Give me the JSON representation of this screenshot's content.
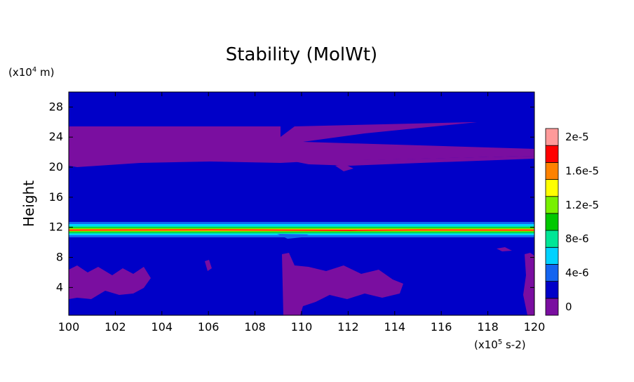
{
  "chart_data": {
    "type": "heatmap",
    "title": "Stability (MolWt)",
    "ylabel": "Height",
    "y_unit": "(x10",
    "y_unit_exp": "4",
    "y_unit_tail": " m)",
    "x_unit": "(x10",
    "x_unit_exp": "5",
    "x_unit_tail": " s-2)",
    "xlim": [
      100,
      120
    ],
    "ylim": [
      0.3,
      30
    ],
    "x_ticks": [
      100,
      102,
      104,
      106,
      108,
      110,
      112,
      114,
      116,
      118,
      120
    ],
    "y_ticks": [
      4,
      8,
      12,
      16,
      20,
      24,
      28
    ],
    "background_level_color": "#0000c8",
    "levels": [
      {
        "label": "0",
        "color": "#7a0ea0"
      },
      {
        "label": "",
        "color": "#0000c8"
      },
      {
        "label": "4e-6",
        "color": "#1464f0"
      },
      {
        "label": "",
        "color": "#00d2ff"
      },
      {
        "label": "8e-6",
        "color": "#00e696"
      },
      {
        "label": "",
        "color": "#00c800"
      },
      {
        "label": "1.2e-5",
        "color": "#78f000"
      },
      {
        "label": "",
        "color": "#ffff00"
      },
      {
        "label": "1.6e-5",
        "color": "#ff8200"
      },
      {
        "label": "",
        "color": "#ff0000"
      },
      {
        "label": "2e-5",
        "color": "#ff9a9a"
      }
    ],
    "features": {
      "upper_region": {
        "level": "0",
        "x_range": [
          100,
          120
        ],
        "y_range": [
          20,
          25.5
        ]
      },
      "stable_layer": {
        "level_peak": "2e-5",
        "x_range": [
          100,
          120
        ],
        "y_center": 11.5,
        "half_width": 0.6
      },
      "lower_patches": {
        "level": "0",
        "x_ranges": [
          [
            100,
            104
          ],
          [
            109.2,
            114.5
          ],
          [
            119.5,
            120
          ]
        ],
        "y_range": [
          0.5,
          6.5
        ]
      }
    }
  }
}
